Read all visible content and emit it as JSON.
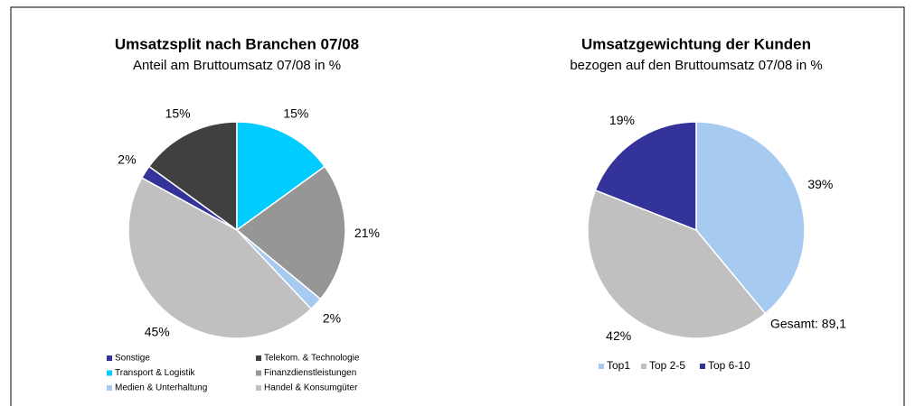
{
  "chart_data": [
    {
      "type": "pie",
      "title": "Umsatzsplit nach Branchen 07/08",
      "subtitle": "Anteil am Bruttoumsatz 07/08 in %",
      "categories": [
        "Sonstige",
        "Telekom. & Technologie",
        "Transport & Logistik",
        "Finanzdienstleistungen",
        "Medien & Unterhaltung",
        "Handel & Konsumgüter"
      ],
      "values": [
        2,
        15,
        15,
        21,
        2,
        45
      ],
      "value_labels": [
        "2%",
        "15%",
        "15%",
        "21%",
        "2%",
        "45%"
      ],
      "colors": [
        "#333399",
        "#404040",
        "#00ccff",
        "#969696",
        "#a6caf0",
        "#c0c0c0"
      ]
    },
    {
      "type": "pie",
      "title": "Umsatzgewichtung der Kunden",
      "subtitle": "bezogen auf den Bruttoumsatz 07/08 in %",
      "categories": [
        "Top1",
        "Top 2-5",
        "Top 6-10"
      ],
      "values": [
        39,
        42,
        19
      ],
      "value_labels": [
        "39%",
        "42%",
        "19%"
      ],
      "colors": [
        "#a6caf0",
        "#c0c0c0",
        "#333399"
      ],
      "annotation": "Gesamt: 89,1"
    }
  ]
}
